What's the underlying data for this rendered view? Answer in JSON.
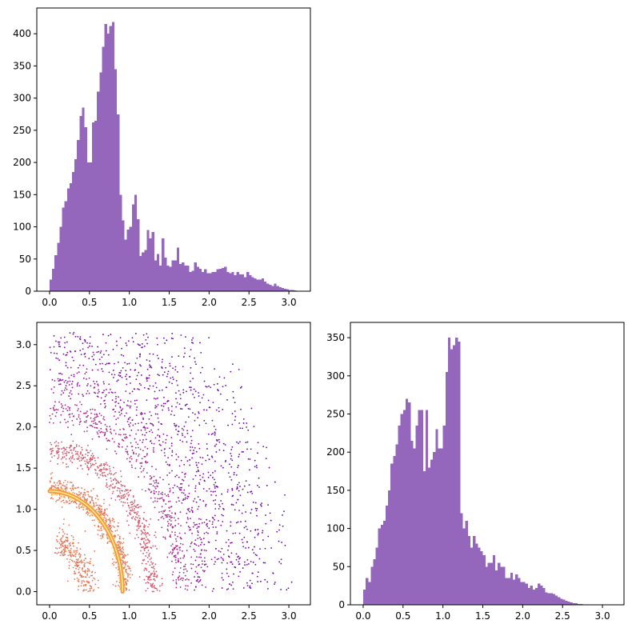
{
  "chart_data": [
    {
      "type": "histogram",
      "panel": "top-left",
      "title": "",
      "xlabel": "",
      "ylabel": "",
      "xlim": [
        -0.16,
        3.27
      ],
      "ylim": [
        0,
        440
      ],
      "xticks": [
        "0.0",
        "0.5",
        "1.0",
        "1.5",
        "2.0",
        "2.5",
        "3.0"
      ],
      "yticks": [
        "0",
        "50",
        "100",
        "150",
        "200",
        "250",
        "300",
        "350",
        "400"
      ],
      "grid": false,
      "bar_color": "#9467bd",
      "bin_start": 0.0,
      "bin_width": 0.03125,
      "values": [
        18,
        35,
        56,
        75,
        100,
        130,
        140,
        160,
        168,
        185,
        205,
        235,
        272,
        285,
        255,
        200,
        200,
        262,
        265,
        310,
        340,
        380,
        415,
        400,
        412,
        418,
        345,
        275,
        150,
        110,
        80,
        96,
        100,
        135,
        150,
        112,
        55,
        60,
        64,
        95,
        82,
        92,
        48,
        58,
        40,
        82,
        52,
        40,
        38,
        48,
        48,
        68,
        42,
        45,
        40,
        40,
        30,
        32,
        45,
        38,
        35,
        30,
        34,
        28,
        28,
        30,
        30,
        34,
        35,
        36,
        38,
        30,
        28,
        30,
        25,
        30,
        26,
        26,
        22,
        30,
        25,
        22,
        20,
        18,
        18,
        20,
        15,
        12,
        10,
        8,
        12,
        8,
        6,
        5,
        4,
        3,
        2,
        2,
        1,
        0
      ]
    },
    {
      "type": "scatter",
      "panel": "bottom-left",
      "title": "",
      "xlabel": "",
      "ylabel": "",
      "xlim": [
        -0.16,
        3.27
      ],
      "ylim": [
        -0.16,
        3.27
      ],
      "xticks": [
        "0.0",
        "0.5",
        "1.0",
        "1.5",
        "2.0",
        "2.5",
        "3.0"
      ],
      "yticks": [
        "0.0",
        "0.5",
        "1.0",
        "1.5",
        "2.0",
        "2.5",
        "3.0"
      ],
      "grid": false,
      "colormap": [
        "#fcf18f",
        "#f89540",
        "#cc4778",
        "#7e03a8",
        "#2a0593"
      ],
      "bands": [
        {
          "radius": 1.22,
          "spread": 0.02,
          "theta_max_deg": 90,
          "count": 700,
          "color_index": 0.05
        },
        {
          "radius": 0.62,
          "spread": 0.09,
          "theta_max_deg": 80,
          "count": 260,
          "color_index": 0.35
        },
        {
          "radius": 1.25,
          "spread": 0.07,
          "theta_max_deg": 90,
          "count": 650,
          "color_index": 0.35
        },
        {
          "radius": 1.72,
          "spread": 0.07,
          "theta_max_deg": 90,
          "count": 520,
          "color_index": 0.45
        },
        {
          "radius": 2.2,
          "spread": 0.08,
          "theta_max_deg": 90,
          "count": 420,
          "color_index": 0.62
        },
        {
          "radius": 2.55,
          "spread": 0.1,
          "theta_max_deg": 90,
          "count": 380,
          "color_index": 0.7
        },
        {
          "radius": 2.95,
          "spread": 0.12,
          "theta_max_deg": 90,
          "count": 360,
          "color_index": 0.75
        },
        {
          "radius": 3.35,
          "spread": 0.15,
          "theta_max_deg": 90,
          "count": 340,
          "color_index": 0.8
        },
        {
          "radius": 3.8,
          "spread": 0.18,
          "theta_max_deg": 90,
          "count": 260,
          "color_index": 0.85
        }
      ],
      "core_curve": {
        "radius": 1.22,
        "color": "#f89540",
        "highlight": "#fcf18f"
      }
    },
    {
      "type": "histogram",
      "panel": "bottom-right",
      "title": "",
      "xlabel": "",
      "ylabel": "",
      "xlim": [
        -0.16,
        3.27
      ],
      "ylim": [
        0,
        370
      ],
      "xticks": [
        "0.0",
        "0.5",
        "1.0",
        "1.5",
        "2.0",
        "2.5",
        "3.0"
      ],
      "yticks": [
        "0",
        "50",
        "100",
        "150",
        "200",
        "250",
        "300",
        "350"
      ],
      "grid": false,
      "bar_color": "#9467bd",
      "bin_start": 0.0,
      "bin_width": 0.03125,
      "values": [
        20,
        35,
        30,
        50,
        60,
        75,
        100,
        105,
        110,
        130,
        150,
        185,
        195,
        210,
        235,
        250,
        255,
        270,
        265,
        215,
        205,
        235,
        255,
        255,
        175,
        255,
        180,
        190,
        200,
        230,
        205,
        205,
        235,
        305,
        350,
        335,
        340,
        350,
        345,
        120,
        100,
        110,
        90,
        75,
        90,
        80,
        75,
        70,
        65,
        50,
        55,
        55,
        65,
        45,
        55,
        50,
        50,
        35,
        35,
        42,
        33,
        40,
        35,
        30,
        30,
        28,
        22,
        25,
        20,
        22,
        28,
        25,
        22,
        16,
        15,
        15,
        14,
        12,
        10,
        8,
        7,
        5,
        4,
        3,
        2,
        2,
        1,
        1,
        0,
        0
      ]
    }
  ]
}
